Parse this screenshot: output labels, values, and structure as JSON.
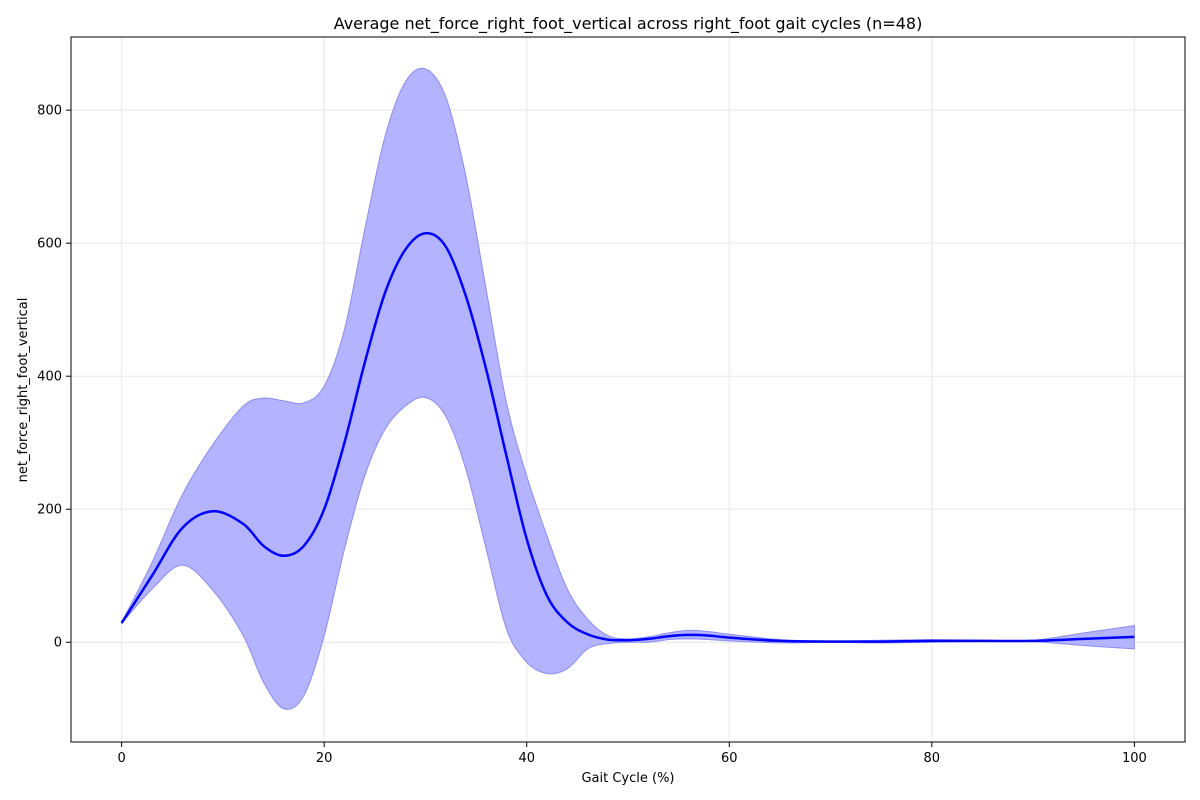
{
  "chart_data": {
    "type": "line",
    "title": "Average net_force_right_foot_vertical across right_foot gait cycles (n=48)",
    "xlabel": "Gait Cycle (%)",
    "ylabel": "net_force_right_foot_vertical",
    "xlim": [
      -5,
      105
    ],
    "ylim": [
      -150,
      910
    ],
    "xticks": [
      0,
      20,
      40,
      60,
      80,
      100
    ],
    "yticks": [
      0,
      200,
      400,
      600,
      800
    ],
    "grid": true,
    "colors": {
      "mean_line": "#0000ff",
      "band_fill": "#b3b3ff",
      "band_edge": "#8c8cf0"
    },
    "x": [
      0,
      3,
      6,
      9,
      12,
      14,
      16,
      18,
      20,
      22,
      24,
      26,
      28,
      30,
      32,
      34,
      36,
      38,
      40,
      42,
      44,
      46,
      48,
      50,
      52,
      54,
      56,
      58,
      60,
      65,
      70,
      75,
      80,
      85,
      90,
      95,
      100
    ],
    "series": [
      {
        "role": "mean",
        "values": [
          29,
          100,
          172,
          197,
          178,
          145,
          130,
          145,
          200,
          300,
          420,
          525,
          590,
          615,
          595,
          520,
          410,
          280,
          155,
          70,
          30,
          12,
          4,
          3,
          5,
          9,
          11,
          10,
          7,
          2,
          1,
          1,
          2,
          2,
          2,
          5,
          8
        ]
      },
      {
        "role": "upper",
        "values": [
          30,
          120,
          222,
          297,
          355,
          367,
          363,
          360,
          385,
          470,
          620,
          760,
          842,
          862,
          820,
          700,
          530,
          360,
          250,
          160,
          80,
          35,
          10,
          5,
          8,
          14,
          18,
          16,
          12,
          4,
          2,
          3,
          4,
          3,
          3,
          14,
          25
        ]
      },
      {
        "role": "lower",
        "values": [
          28,
          80,
          116,
          78,
          10,
          -60,
          -100,
          -80,
          10,
          140,
          250,
          320,
          355,
          368,
          340,
          260,
          140,
          20,
          -30,
          -47,
          -40,
          -10,
          -2,
          0,
          0,
          4,
          5,
          4,
          2,
          -1,
          0,
          -1,
          0,
          1,
          1,
          -5,
          -10
        ]
      }
    ]
  }
}
